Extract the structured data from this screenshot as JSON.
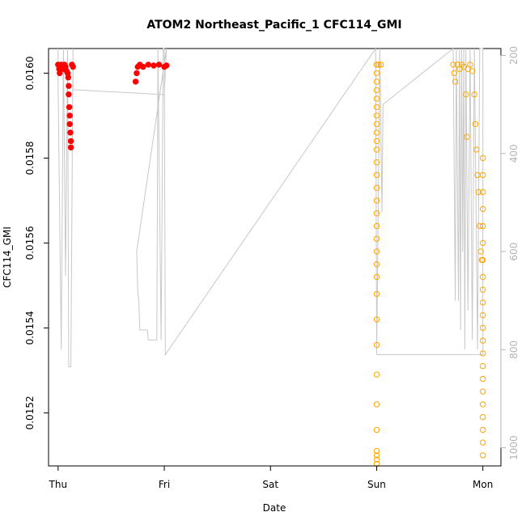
{
  "chart_data": {
    "type": "scatter",
    "title": "ATOM2 Northeast_Pacific_1 CFC114_GMI",
    "xlabel": "Date",
    "ylabel": "CFC114_GMI",
    "x_ticks": [
      "Thu",
      "Fri",
      "Sat",
      "Sun",
      "Mon"
    ],
    "xlim_days": [
      -0.09,
      4.17
    ],
    "ylim": [
      0.015075,
      0.016058
    ],
    "y_ticks": [
      0.0152,
      0.0154,
      0.0156,
      0.0158,
      0.016
    ],
    "y_tick_labels": [
      "0.0152",
      "0.0154",
      "0.0156",
      "0.0158",
      "0.0160"
    ],
    "y2_label": "",
    "y2lim": [
      1037,
      186
    ],
    "y2_ticks": [
      200,
      400,
      600,
      800,
      1000
    ],
    "y2_tick_labels": [
      "200",
      "400",
      "600",
      "800",
      "1000"
    ],
    "grid": false,
    "legend": "none",
    "colors": {
      "series_red": "#ff0000",
      "series_orange": "#ffa500",
      "pressure_line": "#c8c8c8",
      "axis": "#000000",
      "right_axis": "#b4b4b4"
    },
    "series": [
      {
        "color": "#ff0000",
        "marker": "filled-circle",
        "points": [
          [
            0.0,
            0.01602
          ],
          [
            0.01,
            0.01601
          ],
          [
            0.015,
            0.016
          ],
          [
            0.02,
            0.016015
          ],
          [
            0.03,
            0.01602
          ],
          [
            0.04,
            0.016018
          ],
          [
            0.05,
            0.01601
          ],
          [
            0.06,
            0.01602
          ],
          [
            0.07,
            0.016015
          ],
          [
            0.08,
            0.016005
          ],
          [
            0.09,
            0.016
          ],
          [
            0.095,
            0.01599
          ],
          [
            0.1,
            0.01597
          ],
          [
            0.1,
            0.01595
          ],
          [
            0.105,
            0.01592
          ],
          [
            0.11,
            0.0159
          ],
          [
            0.11,
            0.01588
          ],
          [
            0.115,
            0.01586
          ],
          [
            0.12,
            0.01584
          ],
          [
            0.12,
            0.015825
          ],
          [
            0.13,
            0.01602
          ],
          [
            0.14,
            0.016015
          ],
          [
            0.73,
            0.01598
          ],
          [
            0.74,
            0.016
          ],
          [
            0.75,
            0.016015
          ],
          [
            0.77,
            0.01602
          ],
          [
            0.8,
            0.016015
          ],
          [
            0.85,
            0.01602
          ],
          [
            0.9,
            0.016018
          ],
          [
            0.95,
            0.01602
          ],
          [
            1.0,
            0.016015
          ],
          [
            1.02,
            0.016018
          ]
        ]
      },
      {
        "color": "#ffa500",
        "marker": "open-circle",
        "points": [
          [
            3.0,
            0.01602
          ],
          [
            3.0,
            0.016
          ],
          [
            3.0,
            0.01598
          ],
          [
            3.0,
            0.01596
          ],
          [
            3.0,
            0.01594
          ],
          [
            3.0,
            0.01592
          ],
          [
            3.0,
            0.0159
          ],
          [
            3.0,
            0.01588
          ],
          [
            3.0,
            0.01586
          ],
          [
            3.0,
            0.01584
          ],
          [
            3.0,
            0.01582
          ],
          [
            3.0,
            0.01579
          ],
          [
            3.0,
            0.01576
          ],
          [
            3.0,
            0.01573
          ],
          [
            3.0,
            0.0157
          ],
          [
            3.0,
            0.01567
          ],
          [
            3.0,
            0.01564
          ],
          [
            3.0,
            0.01561
          ],
          [
            3.0,
            0.01558
          ],
          [
            3.0,
            0.01555
          ],
          [
            3.0,
            0.01552
          ],
          [
            3.0,
            0.01548
          ],
          [
            3.0,
            0.01542
          ],
          [
            3.0,
            0.01536
          ],
          [
            3.0,
            0.01529
          ],
          [
            3.0,
            0.01522
          ],
          [
            3.0,
            0.01516
          ],
          [
            3.0,
            0.01511
          ],
          [
            3.0,
            0.0151
          ],
          [
            3.0,
            0.01509
          ],
          [
            3.0,
            0.01508
          ],
          [
            3.02,
            0.01602
          ],
          [
            3.04,
            0.01602
          ],
          [
            3.72,
            0.01602
          ],
          [
            3.73,
            0.016
          ],
          [
            3.74,
            0.01598
          ],
          [
            3.76,
            0.01602
          ],
          [
            3.78,
            0.01601
          ],
          [
            3.8,
            0.01602
          ],
          [
            3.82,
            0.016015
          ],
          [
            3.84,
            0.01595
          ],
          [
            3.85,
            0.01585
          ],
          [
            3.86,
            0.01601
          ],
          [
            3.88,
            0.01602
          ],
          [
            3.9,
            0.016005
          ],
          [
            3.92,
            0.01595
          ],
          [
            3.93,
            0.01588
          ],
          [
            3.94,
            0.01582
          ],
          [
            3.95,
            0.01576
          ],
          [
            3.96,
            0.01572
          ],
          [
            3.97,
            0.01564
          ],
          [
            3.98,
            0.01558
          ],
          [
            3.99,
            0.01556
          ],
          [
            4.0,
            0.0158
          ],
          [
            4.0,
            0.01576
          ],
          [
            4.0,
            0.01572
          ],
          [
            4.0,
            0.01568
          ],
          [
            4.0,
            0.01564
          ],
          [
            4.0,
            0.0156
          ],
          [
            4.0,
            0.01556
          ],
          [
            4.0,
            0.01552
          ],
          [
            4.0,
            0.01549
          ],
          [
            4.0,
            0.01546
          ],
          [
            4.0,
            0.01543
          ],
          [
            4.0,
            0.0154
          ],
          [
            4.0,
            0.01537
          ],
          [
            4.0,
            0.01534
          ],
          [
            4.0,
            0.01531
          ],
          [
            4.0,
            0.01528
          ],
          [
            4.0,
            0.01525
          ],
          [
            4.0,
            0.01522
          ],
          [
            4.0,
            0.01519
          ],
          [
            4.0,
            0.01516
          ],
          [
            4.0,
            0.01513
          ],
          [
            4.0,
            0.0151
          ]
        ]
      }
    ],
    "pressure_line": [
      [
        0.0,
        186
      ],
      [
        0.0,
        260
      ],
      [
        0.03,
        800
      ],
      [
        0.05,
        186
      ],
      [
        0.07,
        650
      ],
      [
        0.09,
        186
      ],
      [
        0.1,
        835
      ],
      [
        0.12,
        835
      ],
      [
        0.14,
        186
      ],
      [
        0.14,
        270
      ],
      [
        1.0,
        280
      ],
      [
        1.02,
        186
      ],
      [
        0.74,
        600
      ],
      [
        0.75,
        680
      ],
      [
        0.76,
        700
      ],
      [
        0.77,
        760
      ],
      [
        0.84,
        760
      ],
      [
        0.85,
        780
      ],
      [
        0.93,
        780
      ],
      [
        0.94,
        186
      ],
      [
        0.97,
        780
      ],
      [
        0.99,
        186
      ],
      [
        1.0,
        186
      ],
      [
        1.01,
        810
      ],
      [
        2.99,
        186
      ],
      [
        3.0,
        810
      ],
      [
        3.03,
        186
      ],
      [
        3.05,
        520
      ],
      [
        3.06,
        300
      ],
      [
        3.72,
        186
      ],
      [
        3.74,
        700
      ],
      [
        3.75,
        186
      ],
      [
        3.77,
        700
      ],
      [
        3.78,
        186
      ],
      [
        3.79,
        760
      ],
      [
        3.8,
        186
      ],
      [
        3.81,
        600
      ],
      [
        3.82,
        186
      ],
      [
        3.83,
        800
      ],
      [
        3.84,
        186
      ],
      [
        3.86,
        720
      ],
      [
        3.88,
        186
      ],
      [
        3.9,
        780
      ],
      [
        3.92,
        186
      ],
      [
        3.95,
        800
      ],
      [
        3.97,
        186
      ],
      [
        4.0,
        186
      ],
      [
        4.0,
        810
      ],
      [
        3.0,
        810
      ]
    ]
  }
}
